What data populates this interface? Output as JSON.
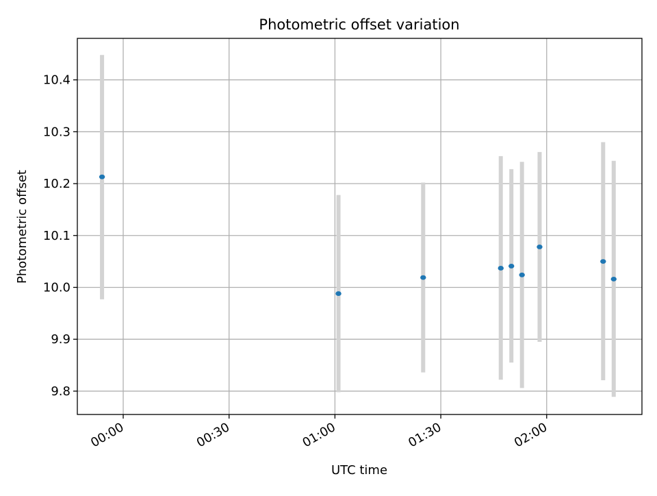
{
  "chart_data": {
    "type": "scatter",
    "title": "Photometric offset variation",
    "xlabel": "UTC time",
    "ylabel": "Photometric offset",
    "x_tick_labels": [
      "00:00",
      "00:30",
      "01:00",
      "01:30",
      "02:00"
    ],
    "x_tick_minutes": [
      0,
      30,
      60,
      90,
      120
    ],
    "xlim_minutes": [
      -13,
      147
    ],
    "ylim": [
      9.755,
      10.48
    ],
    "y_ticks": [
      9.8,
      9.9,
      10.0,
      10.1,
      10.2,
      10.3,
      10.4
    ],
    "y_tick_labels": [
      "9.8",
      "9.9",
      "10.0",
      "10.1",
      "10.2",
      "10.3",
      "10.4"
    ],
    "grid": true,
    "colors": {
      "marker": "#1f77b4",
      "errorbar": "#d3d3d3",
      "grid": "#b0b0b0"
    },
    "points": [
      {
        "time": "23:54",
        "y": 10.213,
        "ylow": 9.977,
        "yhigh": 10.448
      },
      {
        "time": "01:01",
        "y": 9.988,
        "ylow": 9.798,
        "yhigh": 10.178
      },
      {
        "time": "01:25",
        "y": 10.019,
        "ylow": 9.836,
        "yhigh": 10.202
      },
      {
        "time": "01:47",
        "y": 10.037,
        "ylow": 9.822,
        "yhigh": 10.253
      },
      {
        "time": "01:50",
        "y": 10.041,
        "ylow": 9.855,
        "yhigh": 10.228
      },
      {
        "time": "01:53",
        "y": 10.024,
        "ylow": 9.806,
        "yhigh": 10.242
      },
      {
        "time": "01:58",
        "y": 10.078,
        "ylow": 9.895,
        "yhigh": 10.261
      },
      {
        "time": "02:16",
        "y": 10.05,
        "ylow": 9.821,
        "yhigh": 10.28
      },
      {
        "time": "02:19",
        "y": 10.016,
        "ylow": 9.789,
        "yhigh": 10.244
      }
    ]
  }
}
